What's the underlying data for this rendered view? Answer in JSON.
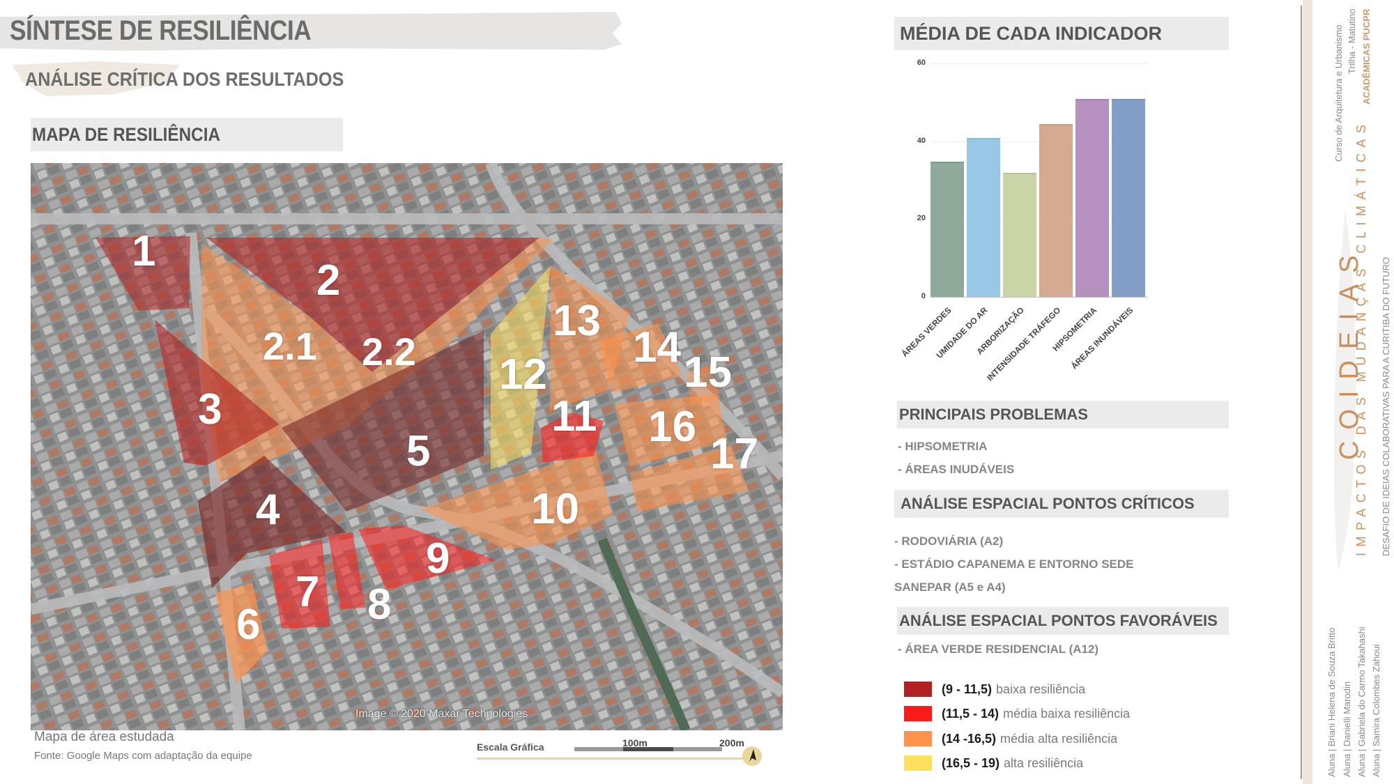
{
  "header": {
    "title": "SÍNTESE DE RESILIÊNCIA",
    "subtitle": "ANÁLISE CRÍTICA DOS RESULTADOS"
  },
  "map_section": {
    "title": "MAPA DE RESILIÊNCIA",
    "credit": "Image © 2020 Maxar Technologies",
    "caption": "Mapa de área estudada",
    "source": "Fonte: Google Maps com adaptação da equipe",
    "scale": {
      "label": "Escala Gráfica",
      "tick_1": "100m",
      "tick_2": "200m",
      "north_icon": "north-arrow-icon"
    },
    "zones": [
      {
        "id": "1",
        "category": "baixa"
      },
      {
        "id": "2",
        "category": "baixa"
      },
      {
        "id": "2.1",
        "category": "media_alta"
      },
      {
        "id": "2.2",
        "category": "media_alta"
      },
      {
        "id": "3",
        "category": "baixa"
      },
      {
        "id": "4",
        "category": "baixa"
      },
      {
        "id": "5",
        "category": "baixa"
      },
      {
        "id": "6",
        "category": "media_alta"
      },
      {
        "id": "7",
        "category": "media_baixa"
      },
      {
        "id": "8",
        "category": "media_baixa"
      },
      {
        "id": "9",
        "category": "media_baixa"
      },
      {
        "id": "10",
        "category": "media_alta"
      },
      {
        "id": "11",
        "category": "media_baixa"
      },
      {
        "id": "12",
        "category": "alta"
      },
      {
        "id": "13",
        "category": "media_alta"
      },
      {
        "id": "14",
        "category": "media_alta"
      },
      {
        "id": "15",
        "category": "media_alta"
      },
      {
        "id": "16",
        "category": "media_alta"
      },
      {
        "id": "17",
        "category": "media_alta"
      }
    ]
  },
  "chart_section": {
    "title": "MÉDIA DE CADA INDICADOR"
  },
  "chart_data": {
    "type": "bar",
    "title": "MÉDIA DE CADA INDICADOR",
    "categories": [
      "ÁREAS VERDES",
      "UMIDADE DO AR",
      "ARBORIZAÇÃO",
      "INTENSIDADE TRÁFEGO",
      "HIPSOMETRIA",
      "ÁREAS INUNDÁVEIS"
    ],
    "values": [
      34.8,
      40.9,
      31.9,
      44.5,
      50.8,
      50.8
    ],
    "colors": [
      "#8fa99a",
      "#99c8e6",
      "#c9d5a6",
      "#d6a990",
      "#b690bf",
      "#839fc7"
    ],
    "xlabel": "",
    "ylabel": "",
    "ylim": [
      0,
      60
    ],
    "yticks": [
      "0",
      "20",
      "40",
      "60"
    ],
    "grid": true,
    "legend": "none"
  },
  "problems": {
    "title": "PRINCIPAIS PROBLEMAS",
    "items": [
      "- HIPSOMETRIA",
      "- ÁREAS INUDÁVEIS"
    ]
  },
  "critical": {
    "title": "ANÁLISE ESPACIAL PONTOS CRÍTICOS",
    "items": [
      "- RODOVIÁRIA (A2)",
      "- ESTÁDIO CAPANEMA E ENTORNO SEDE",
      "SANEPAR (A5 e A4)"
    ]
  },
  "favorable": {
    "title": "ANÁLISE ESPACIAL PONTOS FAVORÁVEIS",
    "items": [
      "- ÁREA VERDE RESIDENCIAL (A12)"
    ]
  },
  "legend": [
    {
      "range": "(9 - 11,5)",
      "label": "baixa resiliência",
      "color": "#b22222"
    },
    {
      "range": "(11,5 - 14)",
      "label": "média baixa resiliência",
      "color": "#ff1a1a"
    },
    {
      "range": "(14 -16,5)",
      "label": "média alta resiliência",
      "color": "#ff934d"
    },
    {
      "range": "(16,5 - 19)",
      "label": "alta resiliência",
      "color": "#ffe05c"
    }
  ],
  "sidebar": {
    "course": "Curso de Arquitetura e Urbanismo",
    "track": "Trilha - Matutino",
    "institution": "ACADÊMICAS PUCPR",
    "brand": "COIDEIAS",
    "tagline": "IMPACTOS DAS MUDANÇAS CLIMÁTICAS",
    "challenge": "DESAFIO DE IDEIAS COLABORATIVAS PARA A CURITIBA DO FUTURO",
    "students": [
      "Aluna | Briani Helena de Souza Britto",
      "Aluna | Danielli Marodin",
      "Aluna | Gabriela do Carmo Takahashi",
      "Aluna | Samira Colombes Zahoui"
    ]
  }
}
